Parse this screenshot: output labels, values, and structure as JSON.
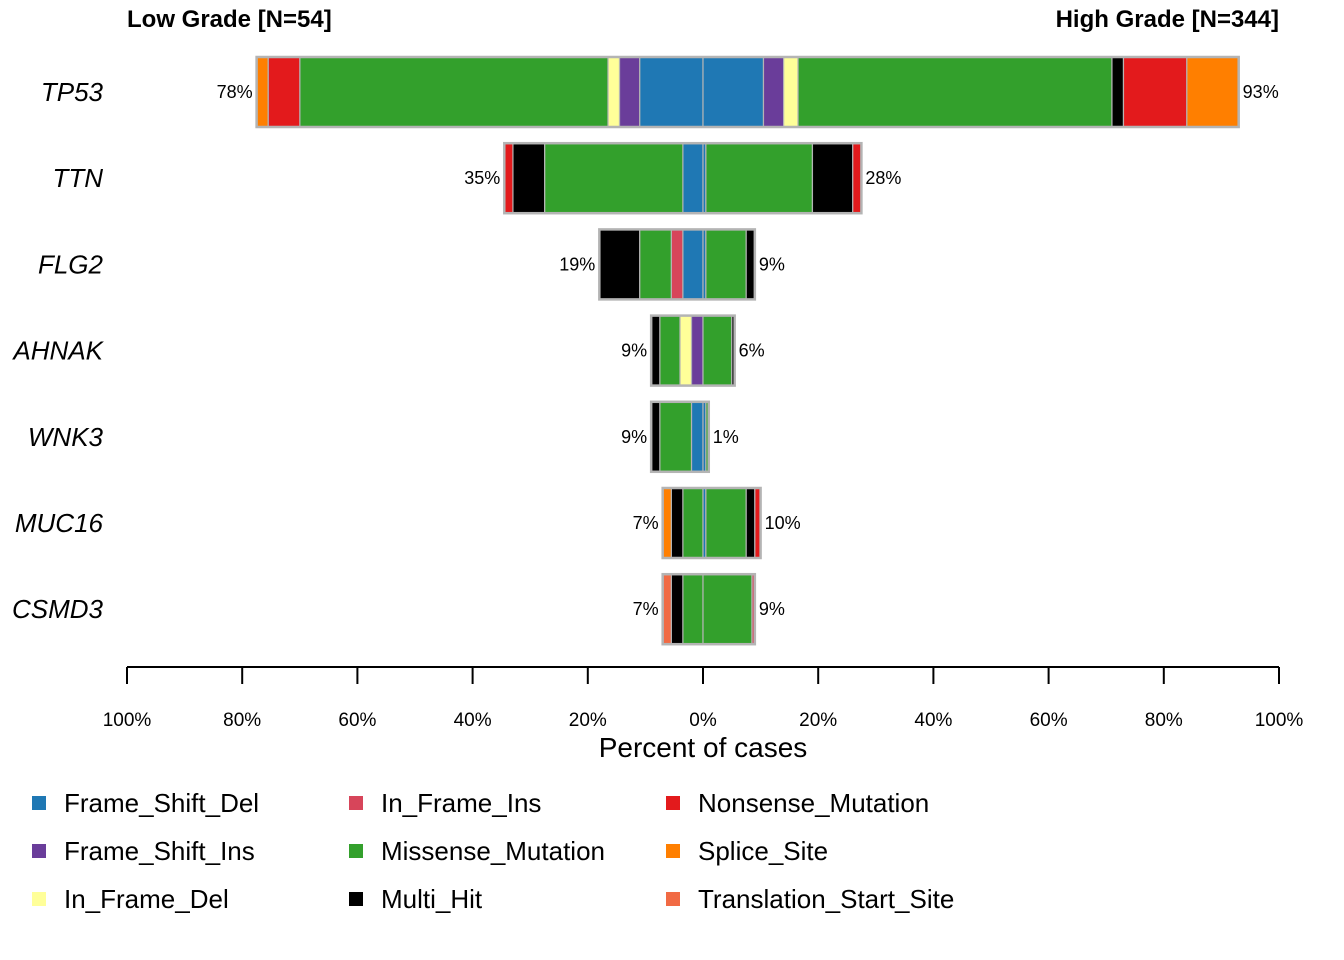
{
  "chart_data": {
    "type": "bar",
    "orientation": "horizontal-diverging",
    "left_group": "Low Grade [N=54]",
    "right_group": "High Grade [N=344]",
    "xlabel": "Percent of cases",
    "x_ticks": [
      "100%",
      "80%",
      "60%",
      "40%",
      "20%",
      "0%",
      "20%",
      "40%",
      "60%",
      "80%",
      "100%"
    ],
    "xlim": [
      -100,
      100
    ],
    "legend_position": "bottom",
    "colors": {
      "Frame_Shift_Del": "#1f78b4",
      "Frame_Shift_Ins": "#6a3d9a",
      "In_Frame_Del": "#ffff99",
      "In_Frame_Ins": "#d7455a",
      "Missense_Mutation": "#33a02c",
      "Multi_Hit": "#000000",
      "Nonsense_Mutation": "#e31a1c",
      "Splice_Site": "#ff7f00",
      "Translation_Start_Site": "#f16a44"
    },
    "legend": [
      "Frame_Shift_Del",
      "In_Frame_Ins",
      "Nonsense_Mutation",
      "Frame_Shift_Ins",
      "Missense_Mutation",
      "Splice_Site",
      "In_Frame_Del",
      "Multi_Hit",
      "Translation_Start_Site"
    ],
    "genes": [
      {
        "name": "TP53",
        "left_label": "78%",
        "right_label": "93%",
        "left": [
          [
            "Frame_Shift_Del",
            11
          ],
          [
            "Frame_Shift_Ins",
            3.5
          ],
          [
            "In_Frame_Del",
            2
          ],
          [
            "Missense_Mutation",
            53.5
          ],
          [
            "Nonsense_Mutation",
            5.5
          ],
          [
            "Splice_Site",
            2
          ]
        ],
        "right": [
          [
            "Frame_Shift_Del",
            10.5
          ],
          [
            "Frame_Shift_Ins",
            3.5
          ],
          [
            "In_Frame_Del",
            2.5
          ],
          [
            "Missense_Mutation",
            54.5
          ],
          [
            "Multi_Hit",
            2
          ],
          [
            "Nonsense_Mutation",
            11
          ],
          [
            "Splice_Site",
            9
          ]
        ]
      },
      {
        "name": "TTN",
        "left_label": "35%",
        "right_label": "28%",
        "left": [
          [
            "Frame_Shift_Del",
            3.5
          ],
          [
            "Missense_Mutation",
            24
          ],
          [
            "Multi_Hit",
            5.5
          ],
          [
            "Nonsense_Mutation",
            1.5
          ]
        ],
        "right": [
          [
            "Frame_Shift_Del",
            0.5
          ],
          [
            "Missense_Mutation",
            18.5
          ],
          [
            "Multi_Hit",
            7
          ],
          [
            "Nonsense_Mutation",
            1.5
          ]
        ]
      },
      {
        "name": "FLG2",
        "left_label": "19%",
        "right_label": "9%",
        "left": [
          [
            "Frame_Shift_Del",
            3.5
          ],
          [
            "In_Frame_Ins",
            2
          ],
          [
            "Missense_Mutation",
            5.5
          ],
          [
            "Multi_Hit",
            7
          ]
        ],
        "right": [
          [
            "Frame_Shift_Del",
            0.5
          ],
          [
            "Missense_Mutation",
            7
          ],
          [
            "Multi_Hit",
            1.5
          ]
        ]
      },
      {
        "name": "AHNAK",
        "left_label": "9%",
        "right_label": "6%",
        "left": [
          [
            "Frame_Shift_Ins",
            2
          ],
          [
            "In_Frame_Del",
            2
          ],
          [
            "Missense_Mutation",
            3.5
          ],
          [
            "Multi_Hit",
            1.5
          ]
        ],
        "right": [
          [
            "Missense_Mutation",
            5
          ],
          [
            "Multi_Hit",
            0.5
          ]
        ]
      },
      {
        "name": "WNK3",
        "left_label": "9%",
        "right_label": "1%",
        "left": [
          [
            "Frame_Shift_Del",
            2
          ],
          [
            "Missense_Mutation",
            5.5
          ],
          [
            "Multi_Hit",
            1.5
          ]
        ],
        "right": [
          [
            "Frame_Shift_Del",
            0.5
          ],
          [
            "Missense_Mutation",
            0.5
          ]
        ]
      },
      {
        "name": "MUC16",
        "left_label": "7%",
        "right_label": "10%",
        "left": [
          [
            "Missense_Mutation",
            3.5
          ],
          [
            "Multi_Hit",
            2
          ],
          [
            "Splice_Site",
            1.5
          ]
        ],
        "right": [
          [
            "Frame_Shift_Del",
            0.5
          ],
          [
            "Missense_Mutation",
            7
          ],
          [
            "Multi_Hit",
            1.5
          ],
          [
            "Nonsense_Mutation",
            1
          ]
        ]
      },
      {
        "name": "CSMD3",
        "left_label": "7%",
        "right_label": "9%",
        "left": [
          [
            "Missense_Mutation",
            3.5
          ],
          [
            "Multi_Hit",
            2
          ],
          [
            "Translation_Start_Site",
            1.5
          ]
        ],
        "right": [
          [
            "Missense_Mutation",
            8.5
          ],
          [
            "In_Frame_Ins",
            0.5
          ]
        ]
      }
    ]
  }
}
